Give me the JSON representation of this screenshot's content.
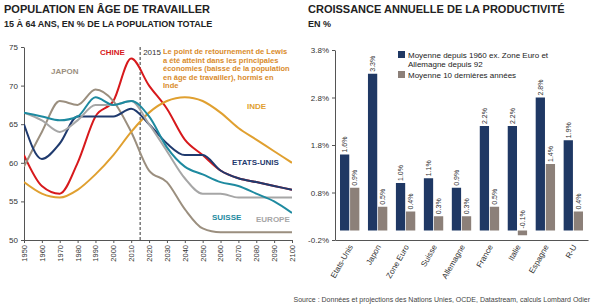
{
  "chart_data": [
    {
      "type": "line",
      "title": "POPULATION EN ÂGE DE TRAVAILLER",
      "subtitle": "15 À 64 ANS, EN % DE LA POPULATION TOTALE",
      "annotation": "Le point de retournement de Lewis a été atteint dans les principales économies (baisse de la population en âge de travailler), hormis en Inde",
      "vline": 2015,
      "x": [
        1950,
        1960,
        1970,
        1980,
        1990,
        2000,
        2010,
        2020,
        2030,
        2040,
        2050,
        2060,
        2070,
        2080,
        2090,
        2100
      ],
      "series": [
        {
          "name": "CHINE",
          "color": "#d7191c",
          "values": [
            61,
            57,
            56,
            60,
            66,
            68,
            73.5,
            70,
            67,
            63,
            61,
            59,
            58,
            57.5,
            57,
            56.5
          ]
        },
        {
          "name": "JAPON",
          "color": "#9b8f7f",
          "values": [
            59.5,
            64,
            68,
            67.5,
            69.5,
            68,
            64,
            59,
            57.5,
            54,
            51.5,
            51,
            51,
            51,
            51,
            51
          ]
        },
        {
          "name": "INDE",
          "color": "#e0a030",
          "values": [
            57.5,
            56,
            55.5,
            56.5,
            58.5,
            61,
            64,
            66.5,
            68,
            68.5,
            68,
            66.5,
            64.5,
            63,
            61.5,
            60
          ]
        },
        {
          "name": "ETATS-UNIS",
          "color": "#1f3a6e",
          "values": [
            65,
            60.5,
            62.5,
            66,
            66,
            66,
            67,
            65,
            62.5,
            61,
            61,
            59,
            58,
            57.5,
            57,
            56.5
          ]
        },
        {
          "name": "EUROPE",
          "color": "#a6a6a6",
          "values": [
            66.5,
            65.5,
            64,
            65.5,
            67.5,
            67.5,
            68,
            65,
            61.5,
            58,
            56,
            56,
            55.5,
            55.5,
            55.5,
            55.5
          ]
        },
        {
          "name": "SUISSE",
          "color": "#1e8aa0",
          "values": [
            66.5,
            66,
            65.5,
            66,
            68.5,
            67.5,
            68,
            66,
            62,
            59.5,
            58.5,
            57.5,
            57,
            56,
            55,
            53.5
          ]
        }
      ],
      "xlim": [
        1950,
        2100
      ],
      "xticks": [
        1950,
        1960,
        1970,
        1980,
        1990,
        2000,
        2010,
        2020,
        2030,
        2040,
        2050,
        2060,
        2070,
        2080,
        2090,
        2100
      ],
      "ylim": [
        50,
        75
      ],
      "yticks": [
        50,
        55,
        60,
        65,
        70,
        75
      ],
      "grid": false
    },
    {
      "type": "bar",
      "title": "CROISSANCE ANNUELLE DE LA PRODUCTIVITÉ",
      "subtitle": "EN %",
      "categories": [
        "Etats-Unis",
        "Japon",
        "Zone Euro",
        "Suisse",
        "Allemagne",
        "France",
        "Italie",
        "Espagne",
        "R-U"
      ],
      "series": [
        {
          "name": "Moyenne depuis 1960 ex. Zone Euro et Allemagne depuis 92",
          "color": "#1f3864",
          "values": [
            1.6,
            3.3,
            1.0,
            1.1,
            0.9,
            2.2,
            2.2,
            2.8,
            1.9
          ],
          "value_labels": [
            "1.6%",
            "3.3%",
            "1.0%",
            "1.1%",
            "0.9%",
            "2.2%",
            "2.2%",
            "2.8%",
            "1.9%"
          ]
        },
        {
          "name": "Moyenne 10 dernières années",
          "color": "#8c8079",
          "values": [
            0.9,
            0.5,
            0.4,
            0.3,
            0.3,
            0.5,
            -0.1,
            1.4,
            0.4
          ],
          "value_labels": [
            "0.9%",
            "0.5%",
            "0.4%",
            "0.3%",
            "0.3%",
            "0.5%",
            "-0.1%",
            "1.4%",
            "0.4%"
          ]
        }
      ],
      "ylim": [
        -0.2,
        3.8
      ],
      "yticks": [
        {
          "value": -0.2,
          "label": "-0.2%"
        },
        {
          "value": 0.8,
          "label": "0.8%"
        },
        {
          "value": 1.8,
          "label": "1.8%"
        },
        {
          "value": 2.8,
          "label": "2.8%"
        },
        {
          "value": 3.8,
          "label": "3.8%"
        }
      ],
      "legend": "upper left",
      "data_labels": true,
      "grid": false
    }
  ],
  "source": "Source : Données et projections des Nations Unies, OCDE, Datastream, calculs Lombard Odier"
}
